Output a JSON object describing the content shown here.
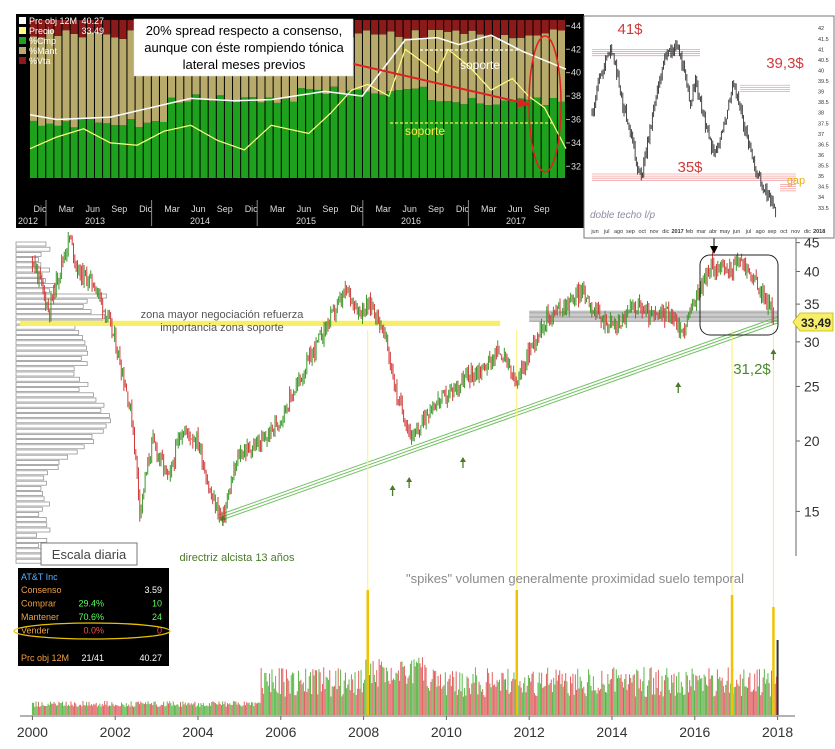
{
  "colors": {
    "up": "#3a9a2a",
    "down": "#d23a3a",
    "trend": "#6fc05f",
    "resistance": "#f7ef6a",
    "volume_up": "#5cb84a",
    "volume_down": "#e06060",
    "spike": "#f2c200",
    "guide": "#fff06a",
    "inset_bg": "#000000",
    "cmp": "#1ea21e",
    "mant": "#b8aa6a",
    "vta": "#8b1a1a",
    "obj_line": "#ffffff",
    "price_line": "#ffff80",
    "annotation_red": "#e03030",
    "annotation_green": "#4a8a2a",
    "last_price_bg": "#f7ef6a"
  },
  "chart_data": [
    {
      "type": "line",
      "title": "",
      "scale": "log",
      "y_ticks": [
        15,
        20,
        25,
        30,
        35,
        40,
        45
      ],
      "ylim": [
        12.5,
        47
      ],
      "x_ticks": [
        "2000",
        "2002",
        "2004",
        "2006",
        "2008",
        "2010",
        "2012",
        "2014",
        "2016",
        "2018"
      ],
      "xlim": [
        1999.7,
        2018.3
      ],
      "last_price": "33,49",
      "series_points": [
        [
          2000.0,
          42
        ],
        [
          2000.4,
          34
        ],
        [
          2000.9,
          46
        ],
        [
          2001.1,
          40
        ],
        [
          2001.5,
          38
        ],
        [
          2002.0,
          30
        ],
        [
          2002.4,
          22
        ],
        [
          2002.6,
          15
        ],
        [
          2002.9,
          20
        ],
        [
          2003.3,
          17
        ],
        [
          2003.6,
          21
        ],
        [
          2004.0,
          20
        ],
        [
          2004.3,
          16
        ],
        [
          2004.6,
          14.5
        ],
        [
          2005.0,
          19
        ],
        [
          2005.6,
          20
        ],
        [
          2006.0,
          22
        ],
        [
          2006.5,
          26
        ],
        [
          2007.0,
          31
        ],
        [
          2007.6,
          37
        ],
        [
          2007.9,
          34
        ],
        [
          2008.2,
          35
        ],
        [
          2008.5,
          31
        ],
        [
          2008.8,
          24
        ],
        [
          2009.2,
          20
        ],
        [
          2009.6,
          23
        ],
        [
          2010.0,
          24
        ],
        [
          2010.5,
          26
        ],
        [
          2010.9,
          27
        ],
        [
          2011.3,
          29
        ],
        [
          2011.7,
          25
        ],
        [
          2012.0,
          29
        ],
        [
          2012.4,
          33
        ],
        [
          2012.9,
          35
        ],
        [
          2013.3,
          37
        ],
        [
          2013.7,
          33
        ],
        [
          2014.1,
          32
        ],
        [
          2014.6,
          35
        ],
        [
          2015.0,
          33
        ],
        [
          2015.4,
          34
        ],
        [
          2015.7,
          31
        ],
        [
          2016.1,
          37
        ],
        [
          2016.4,
          41
        ],
        [
          2016.8,
          40
        ],
        [
          2017.1,
          42
        ],
        [
          2017.5,
          38
        ],
        [
          2017.9,
          33.5
        ]
      ],
      "directriz_line": [
        [
          2004.5,
          14.6
        ],
        [
          2018.0,
          32.8
        ]
      ],
      "support_zone": [
        32.6,
        34.0
      ],
      "resistance_band": [
        32.0,
        32.7
      ],
      "ellipse_label": "",
      "volume_spikes": [
        2008.1,
        2011.7,
        2016.9,
        2017.9
      ],
      "annotations": {
        "zona": "zona mayor negociación refuerza importancia zona soporte",
        "directriz": "directriz alcista 13 años",
        "spikes": "\"spikes\" volumen generalmente proximidad suelo temporal",
        "level_312": "31,2$",
        "escala": "Escala diaria"
      }
    },
    {
      "type": "bar",
      "title": "",
      "legend": [
        {
          "label": "Prc obj 12M",
          "value": "40.27",
          "color": "#ffffff"
        },
        {
          "label": "Precio",
          "value": "33.49",
          "color": "#ffff80"
        },
        {
          "label": "%Cmp",
          "value": "",
          "color": "#1ea21e"
        },
        {
          "label": "%Mant",
          "value": "",
          "color": "#b8aa6a"
        },
        {
          "label": "%Vta",
          "value": "",
          "color": "#8b1a1a"
        }
      ],
      "y_ticks": [
        32,
        34,
        36,
        38,
        40,
        42,
        44
      ],
      "ylim": [
        31,
        44.5
      ],
      "months": [
        "Dic",
        "Mar",
        "Jun",
        "Sep",
        "Dic",
        "Mar",
        "Jun",
        "Sep",
        "Dic",
        "Mar",
        "Jun",
        "Sep",
        "Dic",
        "Mar",
        "Jun",
        "Sep",
        "Dic",
        "Mar",
        "Jun",
        "Sep"
      ],
      "years": [
        "2012",
        "2013",
        "2014",
        "2015",
        "2016",
        "2017"
      ],
      "labels": {
        "soporte_1": "soporte",
        "soporte_2": "soporte",
        "spread": "20% spread respecto a consenso, aunque con éste rompiendo tónica lateral meses previos"
      },
      "obj_points": [
        [
          0,
          36.4
        ],
        [
          0.05,
          36.0
        ],
        [
          0.15,
          36.2
        ],
        [
          0.3,
          37.8
        ],
        [
          0.38,
          37.6
        ],
        [
          0.45,
          37.7
        ],
        [
          0.55,
          38.4
        ],
        [
          0.62,
          38.0
        ],
        [
          0.7,
          42.8
        ],
        [
          0.76,
          43.0
        ],
        [
          0.8,
          42.4
        ],
        [
          0.86,
          43.2
        ],
        [
          0.92,
          41.8
        ],
        [
          1.0,
          40.3
        ]
      ],
      "price_points": [
        [
          0,
          33.5
        ],
        [
          0.05,
          34.5
        ],
        [
          0.1,
          35.2
        ],
        [
          0.15,
          34.0
        ],
        [
          0.2,
          33.8
        ],
        [
          0.25,
          35.0
        ],
        [
          0.3,
          35.5
        ],
        [
          0.35,
          34.2
        ],
        [
          0.4,
          33.4
        ],
        [
          0.45,
          35.5
        ],
        [
          0.52,
          34.8
        ],
        [
          0.56,
          36.5
        ],
        [
          0.6,
          38.5
        ],
        [
          0.63,
          39.0
        ],
        [
          0.67,
          38.0
        ],
        [
          0.7,
          42.0
        ],
        [
          0.73,
          41.0
        ],
        [
          0.76,
          40.0
        ],
        [
          0.78,
          42.0
        ],
        [
          0.82,
          40.5
        ],
        [
          0.86,
          38.5
        ],
        [
          0.9,
          39.5
        ],
        [
          0.93,
          38.0
        ],
        [
          0.96,
          37.0
        ],
        [
          1.0,
          33.5
        ]
      ],
      "cmp_fraction": [
        0.35,
        0.5,
        0.55,
        0.48
      ],
      "vta_fraction": 0.1
    },
    {
      "type": "line",
      "title": "",
      "y_ticks": [
        "42",
        "41.5",
        "41",
        "40.5",
        "40",
        "39.5",
        "39",
        "38.5",
        "38",
        "37.5",
        "37",
        "36.5",
        "36",
        "35.5",
        "35",
        "34.5",
        "34",
        "33.5"
      ],
      "ylim": [
        33.3,
        42.2
      ],
      "x_ticks": [
        "jun",
        "jul",
        "ago",
        "sep",
        "oct",
        "nov",
        "dic",
        "2017",
        "feb",
        "mar",
        "abr",
        "may",
        "jun",
        "jul",
        "ago",
        "sep",
        "oct",
        "nov",
        "dic",
        "2018"
      ],
      "levels": {
        "top1": "41$",
        "top2": "39,3$",
        "low": "35$",
        "gap": "gap"
      },
      "label": "doble techo l/p",
      "series_points": [
        [
          0,
          38.0
        ],
        [
          0.03,
          39.5
        ],
        [
          0.06,
          40.2
        ],
        [
          0.09,
          41.0
        ],
        [
          0.12,
          40.0
        ],
        [
          0.15,
          38.5
        ],
        [
          0.18,
          37.5
        ],
        [
          0.21,
          36.0
        ],
        [
          0.24,
          34.8
        ],
        [
          0.27,
          36.5
        ],
        [
          0.3,
          38.0
        ],
        [
          0.33,
          39.5
        ],
        [
          0.36,
          41.0
        ],
        [
          0.39,
          40.8
        ],
        [
          0.42,
          41.2
        ],
        [
          0.45,
          40.0
        ],
        [
          0.48,
          38.5
        ],
        [
          0.51,
          39.5
        ],
        [
          0.54,
          38.0
        ],
        [
          0.57,
          37.0
        ],
        [
          0.6,
          36.0
        ],
        [
          0.63,
          36.8
        ],
        [
          0.66,
          38.0
        ],
        [
          0.69,
          39.3
        ],
        [
          0.72,
          38.5
        ],
        [
          0.75,
          37.2
        ],
        [
          0.78,
          36.0
        ],
        [
          0.81,
          35.2
        ],
        [
          0.84,
          34.3
        ],
        [
          0.87,
          34.0
        ],
        [
          0.9,
          33.5
        ]
      ]
    }
  ],
  "consensus_panel": {
    "title": "AT&T Inc",
    "rows": [
      {
        "label": "Consenso",
        "pct": "",
        "count": "3.59"
      },
      {
        "label": "Comprar",
        "pct": "29.4%",
        "count": "10"
      },
      {
        "label": "Mantener",
        "pct": "70.6%",
        "count": "24"
      },
      {
        "label": "Vender",
        "pct": "0.0%",
        "count": "0"
      }
    ],
    "footer": {
      "label": "Prc obj 12M",
      "range": "21/41",
      "value": "40.27"
    }
  }
}
